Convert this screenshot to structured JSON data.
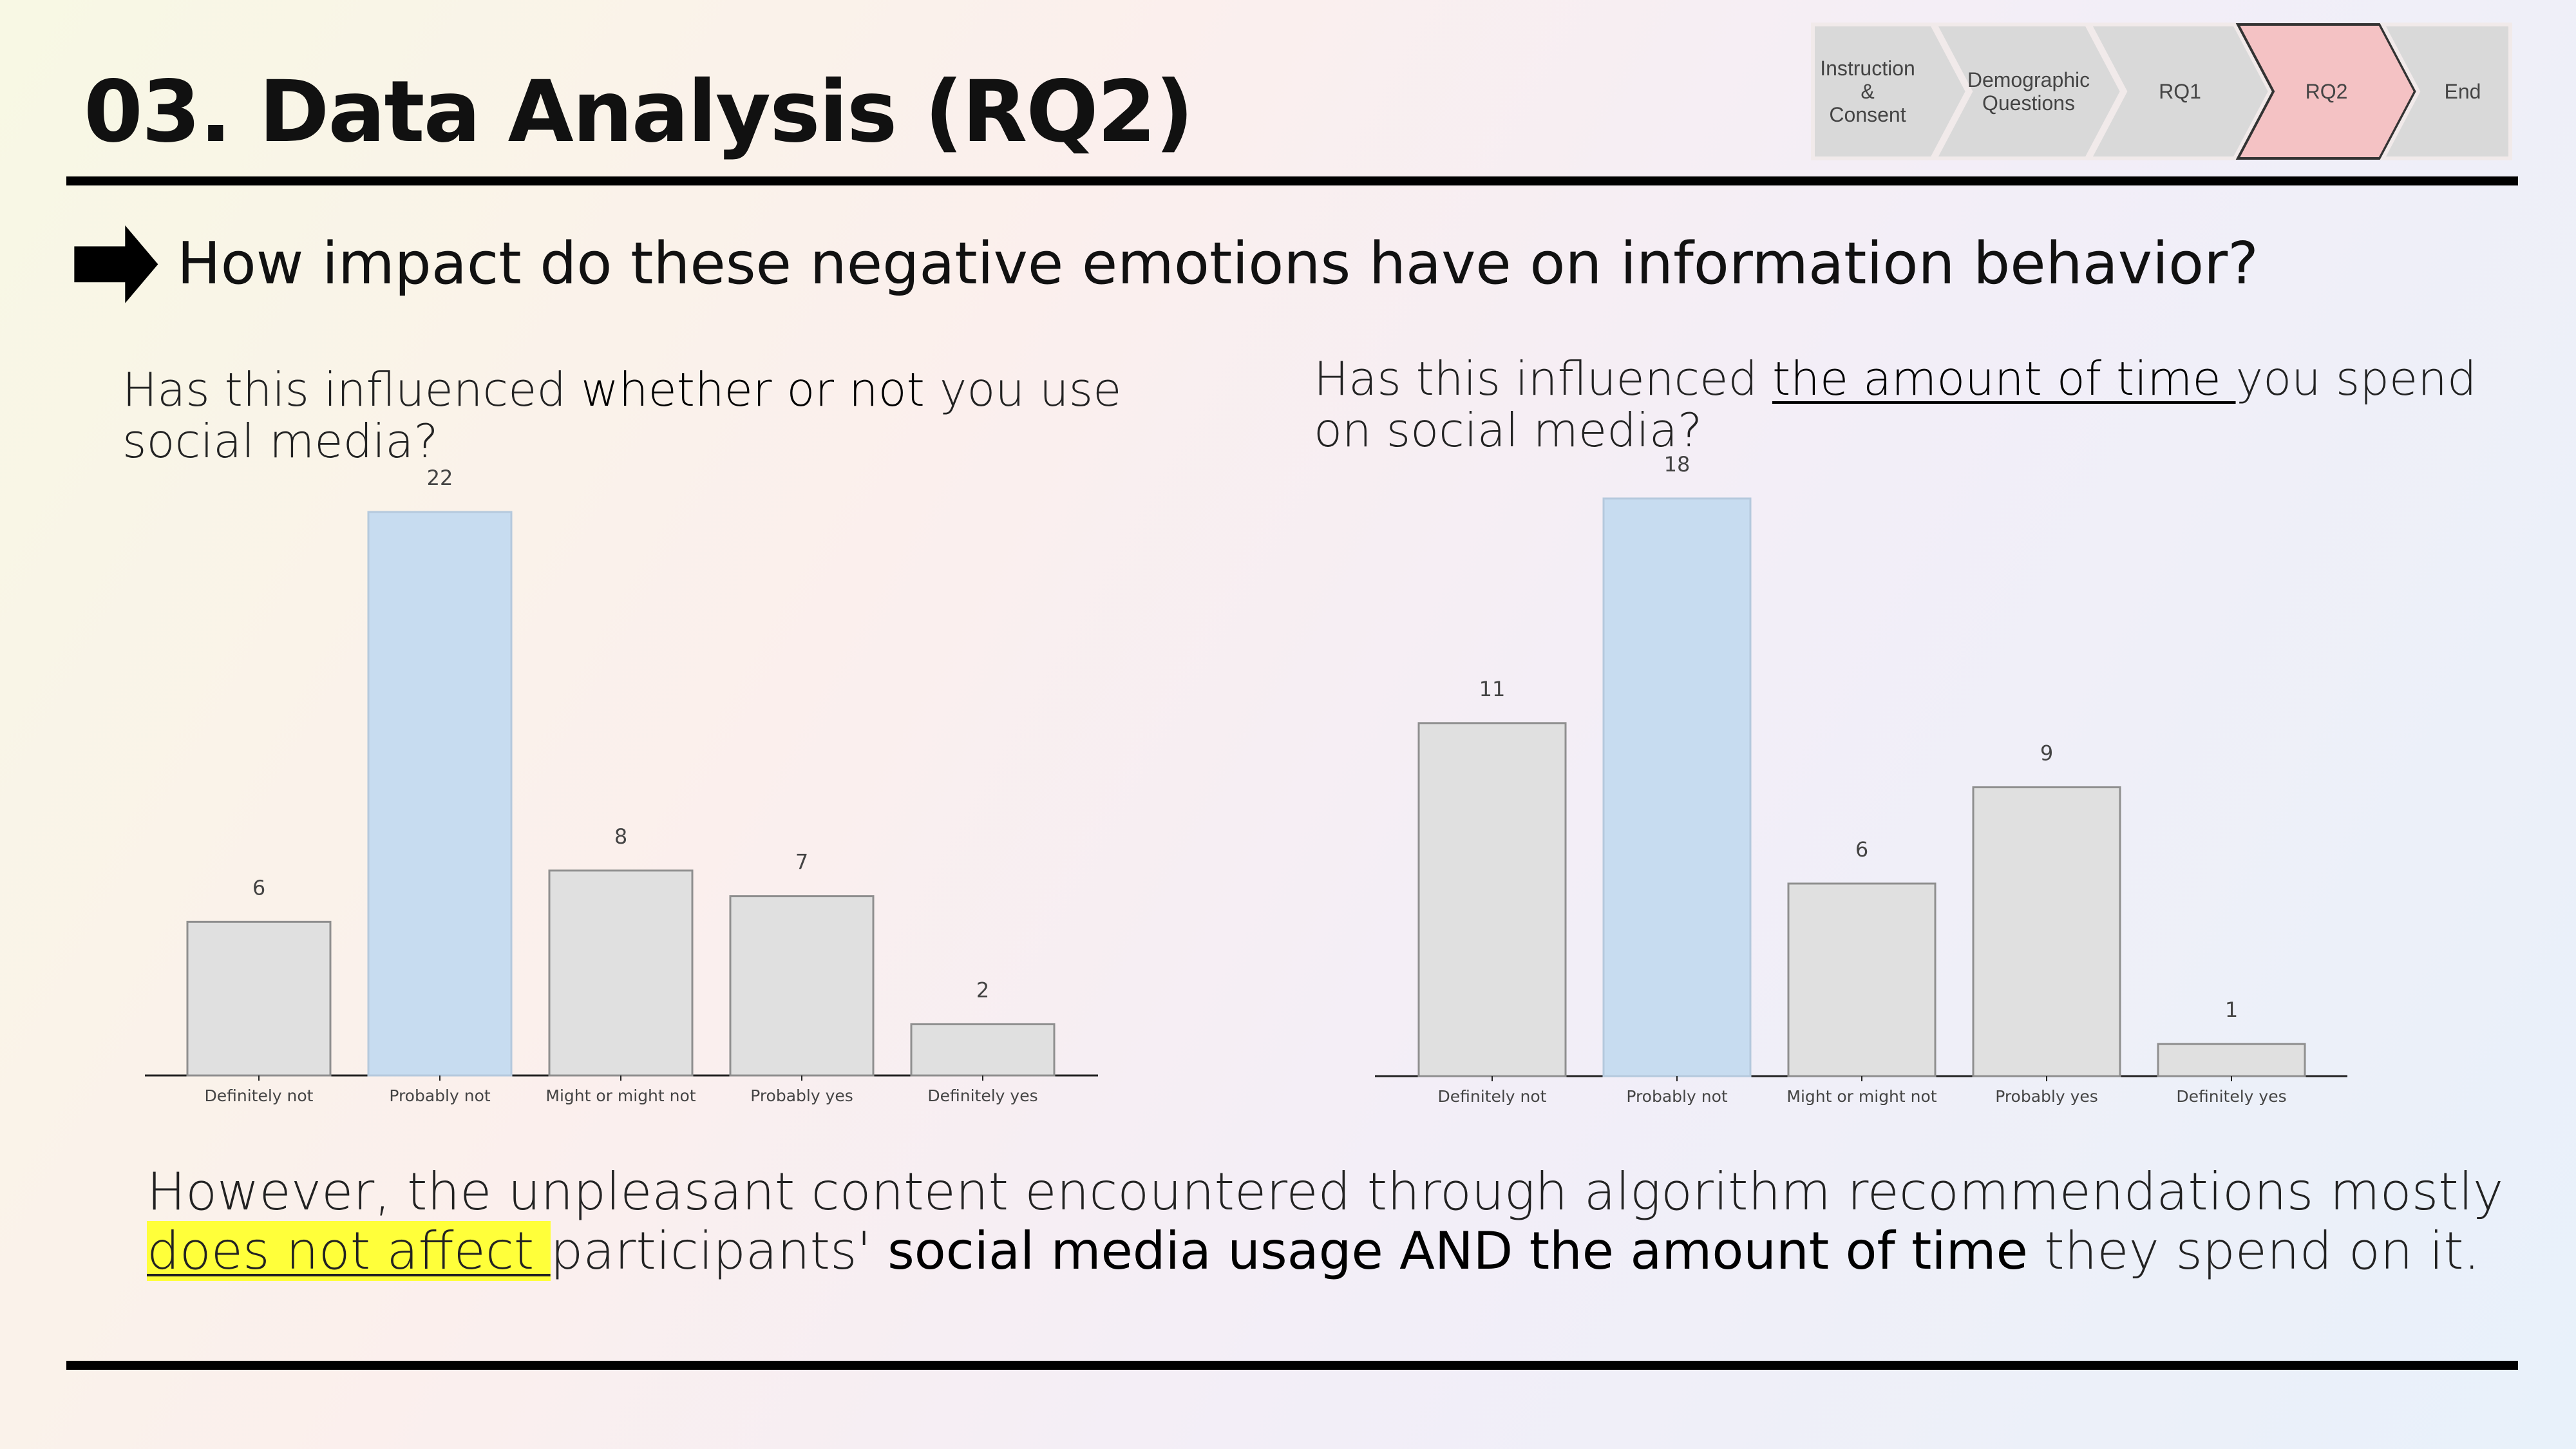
{
  "title": "03. Data Analysis (RQ2)",
  "progress_steps": [
    {
      "label_lines": [
        "Instruction",
        "&",
        "Consent"
      ],
      "active": false
    },
    {
      "label_lines": [
        "Demographic",
        "Questions"
      ],
      "active": false
    },
    {
      "label_lines": [
        "RQ1"
      ],
      "active": false
    },
    {
      "label_lines": [
        "RQ2"
      ],
      "active": true
    },
    {
      "label_lines": [
        "End"
      ],
      "active": false
    }
  ],
  "question": "How impact do these negative emotions have on information behavior?",
  "left_question": {
    "pre": "Has this influenced ",
    "emphasis": "whether or not",
    "post": " you use social media?"
  },
  "right_question": {
    "pre": "Has this influenced ",
    "emphasis": "the amount of time ",
    "post": "you spend on social media?"
  },
  "summary": {
    "line1": "However, the unpleasant content encountered through algorithm recommendations mostly",
    "highlight": "does not affect ",
    "mid": "participants' ",
    "emphasis": "social media usage AND the amount of time",
    "end": " they spend on it."
  },
  "colors": {
    "bar_default": "#e0e0e0",
    "bar_highlight": "#c7dcf0",
    "bar_border": "#8f8f8f",
    "active_step": "#f4c2c4",
    "inactive_step": "#d9d9d9"
  },
  "chart_data": [
    {
      "type": "bar",
      "categories": [
        "Definitely not",
        "Probably not",
        "Might or might not",
        "Probably yes",
        "Definitely yes"
      ],
      "values": [
        6,
        22,
        8,
        7,
        2
      ],
      "highlight_index": 1,
      "title": "",
      "xlabel": "",
      "ylabel": "",
      "ylim": [
        0,
        22
      ]
    },
    {
      "type": "bar",
      "categories": [
        "Definitely not",
        "Probably not",
        "Might or might not",
        "Probably yes",
        "Definitely yes"
      ],
      "values": [
        11,
        18,
        6,
        9,
        1
      ],
      "highlight_index": 1,
      "title": "",
      "xlabel": "",
      "ylabel": "",
      "ylim": [
        0,
        18
      ]
    }
  ]
}
